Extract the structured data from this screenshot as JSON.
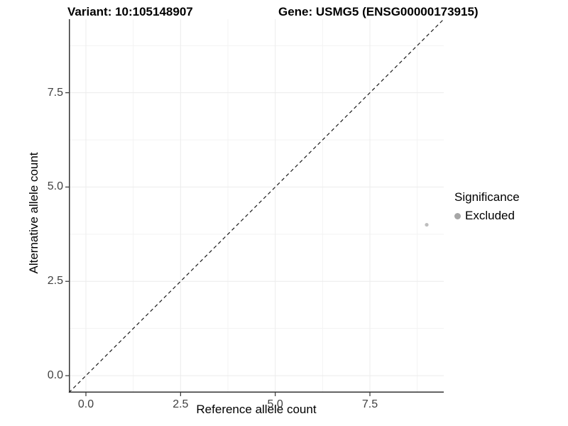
{
  "titles": {
    "variant": "Variant: 10:105148907",
    "gene": "Gene: USMG5 (ENSG00000173915)"
  },
  "chart_data": {
    "type": "scatter",
    "title_left": "Variant: 10:105148907",
    "title_right": "Gene: USMG5 (ENSG00000173915)",
    "xlabel": "Reference allele count",
    "ylabel": "Alternative allele count",
    "xlim": [
      -0.45,
      9.45
    ],
    "ylim": [
      -0.45,
      9.45
    ],
    "x_tick_values": [
      0,
      2.5,
      5,
      7.5
    ],
    "x_tick_labels": [
      "0.0",
      "2.5",
      "5.0",
      "7.5"
    ],
    "y_tick_values": [
      0,
      2.5,
      5,
      7.5
    ],
    "y_tick_labels": [
      "0.0",
      "2.5",
      "5.0",
      "7.5"
    ],
    "minor_grid_values": [
      1.25,
      3.75,
      6.25,
      8.75
    ],
    "grid": {
      "major_color": "#ececec",
      "minor_color": "#f3f3f3",
      "background": "#ffffff"
    },
    "axis": {
      "line_color": "#333333",
      "tick_color": "#333333",
      "tick_label_color": "#404040"
    },
    "identity_line": {
      "equation": "y = x",
      "style": "dashed",
      "color": "#1a1a1a"
    },
    "series": [
      {
        "name": "Excluded",
        "color": "#bebebe",
        "points": [
          {
            "x": 9,
            "y": 4
          }
        ]
      }
    ],
    "legend": {
      "position": "right",
      "title": "Significance",
      "entries": [
        {
          "label": "Excluded",
          "color": "#a6a6a6",
          "marker": "circle"
        }
      ]
    }
  }
}
